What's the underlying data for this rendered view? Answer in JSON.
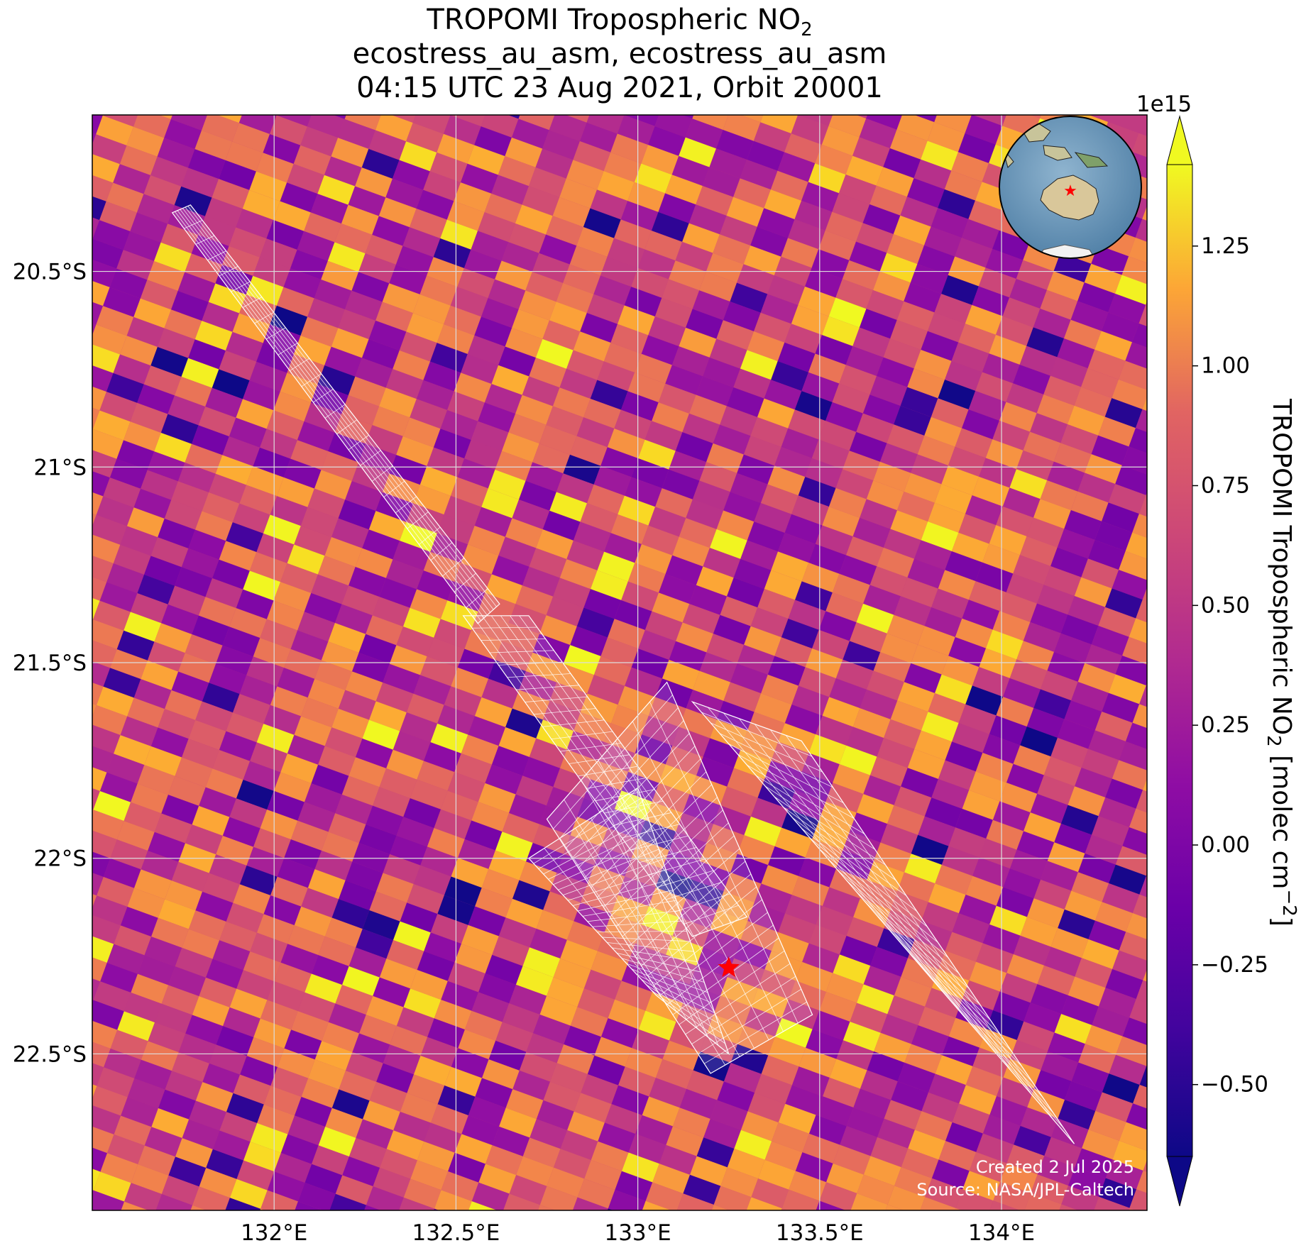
{
  "title": {
    "line1_prefix": "TROPOMI Tropospheric NO",
    "line1_sub": "2",
    "line2": "ecostress_au_asm, ecostress_au_asm",
    "line3": "04:15 UTC 23 Aug 2021, Orbit 20001"
  },
  "map": {
    "lon_range": [
      131.5,
      134.4
    ],
    "lat_range": [
      -22.9,
      -20.1
    ],
    "lon_ticks": [
      {
        "value": 132.0,
        "label": "132°E"
      },
      {
        "value": 132.5,
        "label": "132.5°E"
      },
      {
        "value": 133.0,
        "label": "133°E"
      },
      {
        "value": 133.5,
        "label": "133.5°E"
      },
      {
        "value": 134.0,
        "label": "134°E"
      }
    ],
    "lat_ticks": [
      {
        "value": -20.5,
        "label": "20.5°S"
      },
      {
        "value": -21.0,
        "label": "21°S"
      },
      {
        "value": -21.5,
        "label": "21.5°S"
      },
      {
        "value": -22.0,
        "label": "22°S"
      },
      {
        "value": -22.5,
        "label": "22.5°S"
      }
    ],
    "site_marker": {
      "lon": 133.25,
      "lat": -22.28,
      "color": "#ff0000"
    },
    "credit_line1": "Created 2 Jul 2025",
    "credit_line2": "Source: NASA/JPL-Caltech",
    "grid": true,
    "colormap": "plasma"
  },
  "colorbar": {
    "label_prefix": "TROPOMI Tropospheric NO",
    "label_sub": "2",
    "label_suffix": " [molec cm",
    "label_sup": "−2",
    "label_end": "]",
    "scale_label": "1e15",
    "min": -0.65,
    "max": 1.42,
    "extend": "both",
    "ticks": [
      {
        "value": 1.25,
        "label": "1.25"
      },
      {
        "value": 1.0,
        "label": "1.00"
      },
      {
        "value": 0.75,
        "label": "0.75"
      },
      {
        "value": 0.5,
        "label": "0.50"
      },
      {
        "value": 0.25,
        "label": "0.25"
      },
      {
        "value": 0.0,
        "label": "0.00"
      },
      {
        "value": -0.25,
        "label": "−0.25"
      },
      {
        "value": -0.5,
        "label": "−0.50"
      }
    ]
  },
  "inset_globe": {
    "region": "Australia",
    "marker_color": "#ff0000"
  },
  "footprints": [
    {
      "name": "swath-north",
      "corners": [
        [
          131.72,
          -20.35
        ],
        [
          131.77,
          -20.33
        ],
        [
          132.62,
          -21.35
        ],
        [
          132.56,
          -21.4
        ]
      ]
    },
    {
      "name": "swath-central",
      "corners": [
        [
          132.52,
          -21.38
        ],
        [
          132.7,
          -21.38
        ],
        [
          133.3,
          -22.15
        ],
        [
          133.15,
          -22.2
        ]
      ]
    },
    {
      "name": "scene-cluster-west",
      "corners": [
        [
          132.75,
          -21.9
        ],
        [
          133.08,
          -21.55
        ],
        [
          133.48,
          -22.4
        ],
        [
          133.2,
          -22.55
        ]
      ]
    },
    {
      "name": "scene-cluster-east",
      "corners": [
        [
          133.15,
          -21.6
        ],
        [
          133.45,
          -21.7
        ],
        [
          134.2,
          -22.73
        ],
        [
          133.8,
          -22.3
        ]
      ]
    },
    {
      "name": "scene-south-west",
      "corners": [
        [
          132.7,
          -22.0
        ],
        [
          133.0,
          -21.82
        ],
        [
          133.25,
          -22.5
        ],
        [
          133.05,
          -22.35
        ]
      ]
    }
  ]
}
